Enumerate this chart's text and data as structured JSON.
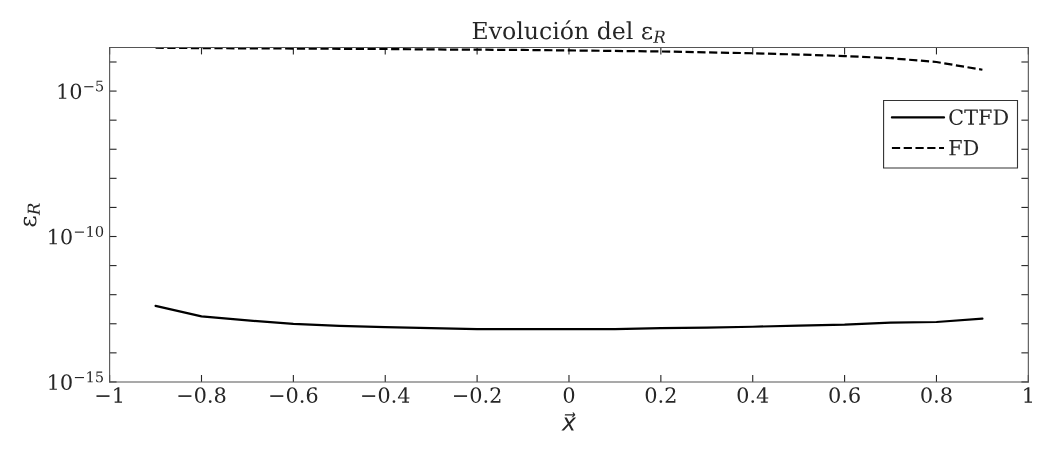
{
  "chart_data": {
    "type": "line",
    "title": "Evolución del ε$_{R}$",
    "xlabel": "x⃗",
    "ylabel": "ε$_{R}$",
    "x": [
      -0.9,
      -0.8,
      -0.7,
      -0.6,
      -0.5,
      -0.4,
      -0.3,
      -0.2,
      -0.1,
      0,
      0.1,
      0.2,
      0.3,
      0.4,
      0.5,
      0.6,
      0.7,
      0.8,
      0.9
    ],
    "series": [
      {
        "name": "CTFD",
        "color": "#000000",
        "line_style": "solid",
        "values": [
          4.1e-13,
          1.8e-13,
          1.3e-13,
          1e-13,
          8.5e-14,
          7.6e-14,
          7.1e-14,
          6.6e-14,
          6.5e-14,
          6.5e-14,
          6.6e-14,
          7.1e-14,
          7.4e-14,
          7.9e-14,
          8.7e-14,
          9.3e-14,
          1.1e-13,
          1.15e-13,
          1.5e-13
        ]
      },
      {
        "name": "FD",
        "color": "#000000",
        "line_style": "dashed",
        "values": [
          0.00031,
          0.0003,
          0.000295,
          0.00029,
          0.000285,
          0.00028,
          0.00027,
          0.000265,
          0.00026,
          0.00025,
          0.00024,
          0.00023,
          0.000215,
          0.0002,
          0.00018,
          0.00016,
          0.000135,
          0.0001,
          5.4e-05
        ]
      }
    ],
    "log": "y",
    "grid": false,
    "legend": "top right",
    "marker": "none",
    "xlim": [
      -1,
      1
    ],
    "xticks": [
      {
        "value": -1,
        "label": "−1"
      },
      {
        "value": -0.8,
        "label": "−0.8"
      },
      {
        "value": -0.6,
        "label": "−0.6"
      },
      {
        "value": -0.4,
        "label": "−0.4"
      },
      {
        "value": -0.2,
        "label": "−0.2"
      },
      0,
      0.2,
      0.4,
      0.6,
      0.8,
      1
    ],
    "ylim": [
      1e-15,
      0.000316
    ],
    "yticks": [
      {
        "value": 1e-15,
        "label": "10$^{−15}$"
      },
      {
        "value": 1e-14,
        "label": null
      },
      {
        "value": 1e-13,
        "label": null
      },
      {
        "value": 1e-12,
        "label": null
      },
      {
        "value": 1e-11,
        "label": null
      },
      {
        "value": 1e-10,
        "label": "10$^{−10}$"
      },
      {
        "value": 1e-09,
        "label": null
      },
      {
        "value": 1e-08,
        "label": null
      },
      {
        "value": 1e-07,
        "label": null
      },
      {
        "value": 1e-06,
        "label": null
      },
      {
        "value": 1e-05,
        "label": "10$^{−5}$"
      },
      {
        "value": 0.0001,
        "label": null
      }
    ]
  }
}
